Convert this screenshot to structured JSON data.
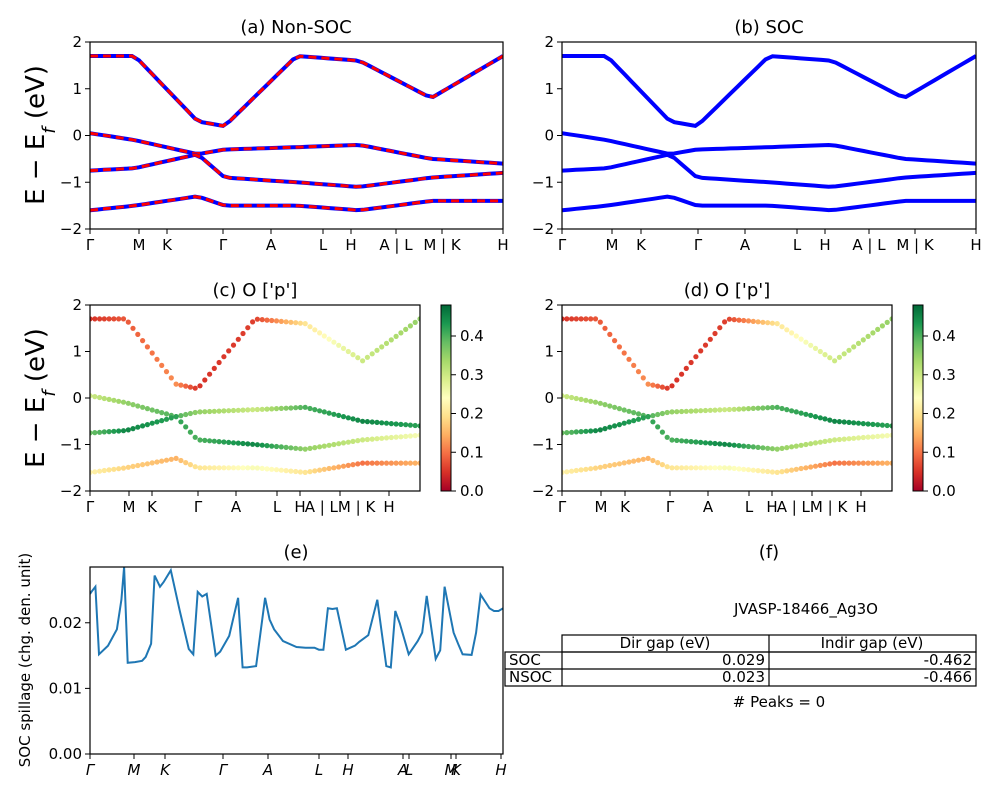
{
  "chart_data": [
    {
      "id": "a",
      "type": "line",
      "title": "(a) Non-SOC",
      "ylabel": "E − E_f (eV)",
      "ylim": [
        -2,
        2
      ],
      "yticks": [
        "2",
        "1",
        "0",
        "−1",
        "−2"
      ],
      "xticks": [
        "Γ",
        "M",
        "K",
        "Γ",
        "A",
        "L",
        "H",
        "A | L",
        "M | K",
        "H"
      ],
      "series": [
        {
          "color": "#0000ff",
          "style": "solid"
        },
        {
          "color": "#ff0000",
          "style": "dashed"
        }
      ],
      "bands": [
        {
          "x": [
            0,
            0.5,
            1.2,
            1.5,
            2.3,
            3.0,
            3.8,
            4.6
          ],
          "y": [
            1.7,
            1.7,
            0.3,
            0.2,
            1.7,
            1.6,
            0.8,
            1.7
          ]
        },
        {
          "x": [
            0,
            0.5,
            1.2,
            1.5,
            2.3,
            3.0,
            3.8,
            4.6
          ],
          "y": [
            0.05,
            -0.1,
            -0.4,
            -0.3,
            -0.25,
            -0.2,
            -0.5,
            -0.6
          ]
        },
        {
          "x": [
            0,
            0.5,
            1.2,
            1.5,
            2.3,
            3.0,
            3.8,
            4.6
          ],
          "y": [
            -0.75,
            -0.7,
            -0.4,
            -0.9,
            -1.0,
            -1.1,
            -0.9,
            -0.8
          ]
        },
        {
          "x": [
            0,
            0.5,
            1.2,
            1.5,
            2.3,
            3.0,
            3.8,
            4.6
          ],
          "y": [
            -1.6,
            -1.5,
            -1.3,
            -1.5,
            -1.5,
            -1.6,
            -1.4,
            -1.4
          ]
        }
      ]
    },
    {
      "id": "b",
      "type": "line",
      "title": "(b) SOC",
      "ylim": [
        -2,
        2
      ],
      "yticks": [
        "2",
        "1",
        "0",
        "−1",
        "−2"
      ],
      "xticks": [
        "Γ",
        "M",
        "K",
        "Γ",
        "A",
        "L",
        "H",
        "A | L",
        "M | K",
        "H"
      ],
      "series": [
        {
          "color": "#0000ff",
          "style": "solid"
        }
      ],
      "bands": [
        {
          "x": [
            0,
            0.5,
            1.2,
            1.5,
            2.3,
            3.0,
            3.8,
            4.6
          ],
          "y": [
            1.7,
            1.7,
            0.3,
            0.2,
            1.7,
            1.6,
            0.8,
            1.7
          ]
        },
        {
          "x": [
            0,
            0.5,
            1.2,
            1.5,
            2.3,
            3.0,
            3.8,
            4.6
          ],
          "y": [
            0.05,
            -0.1,
            -0.4,
            -0.3,
            -0.25,
            -0.2,
            -0.5,
            -0.6
          ]
        },
        {
          "x": [
            0,
            0.5,
            1.2,
            1.5,
            2.3,
            3.0,
            3.8,
            4.6
          ],
          "y": [
            -0.75,
            -0.7,
            -0.4,
            -0.9,
            -1.0,
            -1.1,
            -0.9,
            -0.8
          ]
        },
        {
          "x": [
            0,
            0.5,
            1.2,
            1.5,
            2.3,
            3.0,
            3.8,
            4.6
          ],
          "y": [
            -1.6,
            -1.5,
            -1.3,
            -1.5,
            -1.5,
            -1.6,
            -1.4,
            -1.4
          ]
        }
      ]
    },
    {
      "id": "c",
      "type": "scatter",
      "title": "(c)  O ['p']",
      "ylabel": "E − E_f (eV)",
      "ylim": [
        -2,
        2
      ],
      "yticks": [
        "2",
        "1",
        "0",
        "−1",
        "−2"
      ],
      "xticks": [
        "Γ",
        "M",
        "K",
        "Γ",
        "A",
        "L",
        "H",
        "A | LM | K",
        "H"
      ],
      "colorbar": {
        "min": 0.0,
        "max": 0.48,
        "ticks": [
          "0.4",
          "0.3",
          "0.2",
          "0.1",
          "0.0"
        ],
        "colormap": "RdYlGn"
      },
      "bands": [
        {
          "x": [
            0,
            0.5,
            1.2,
            1.5,
            2.3,
            3.0,
            3.8,
            4.6
          ],
          "y": [
            1.7,
            1.7,
            0.3,
            0.2,
            1.7,
            1.6,
            0.8,
            1.7
          ],
          "w": [
            0.05,
            0.08,
            0.12,
            0.05,
            0.06,
            0.2,
            0.3,
            0.35
          ]
        },
        {
          "x": [
            0,
            0.5,
            1.2,
            1.5,
            2.3,
            3.0,
            3.8,
            4.6
          ],
          "y": [
            0.05,
            -0.1,
            -0.4,
            -0.3,
            -0.25,
            -0.2,
            -0.5,
            -0.6
          ],
          "w": [
            0.3,
            0.35,
            0.4,
            0.35,
            0.3,
            0.4,
            0.45,
            0.42
          ]
        },
        {
          "x": [
            0,
            0.5,
            1.2,
            1.5,
            2.3,
            3.0,
            3.8,
            4.6
          ],
          "y": [
            -0.75,
            -0.7,
            -0.4,
            -0.9,
            -1.0,
            -1.1,
            -0.9,
            -0.8
          ],
          "w": [
            0.38,
            0.45,
            0.42,
            0.4,
            0.45,
            0.35,
            0.3,
            0.25
          ]
        },
        {
          "x": [
            0,
            0.5,
            1.2,
            1.5,
            2.3,
            3.0,
            3.8,
            4.6
          ],
          "y": [
            -1.6,
            -1.5,
            -1.3,
            -1.5,
            -1.5,
            -1.6,
            -1.4,
            -1.4
          ],
          "w": [
            0.22,
            0.18,
            0.15,
            0.2,
            0.25,
            0.2,
            0.1,
            0.15
          ]
        }
      ]
    },
    {
      "id": "d",
      "type": "scatter",
      "title": "(d) O ['p']",
      "ylim": [
        -2,
        2
      ],
      "yticks": [
        "2",
        "1",
        "0",
        "−1",
        "−2"
      ],
      "xticks": [
        "Γ",
        "M",
        "K",
        "Γ",
        "A",
        "L",
        "H",
        "A | LM | K",
        "H"
      ],
      "colorbar": {
        "min": 0.0,
        "max": 0.48,
        "ticks": [
          "0.4",
          "0.3",
          "0.2",
          "0.1",
          "0.0"
        ],
        "colormap": "RdYlGn"
      },
      "bands": [
        {
          "x": [
            0,
            0.5,
            1.2,
            1.5,
            2.3,
            3.0,
            3.8,
            4.6
          ],
          "y": [
            1.7,
            1.7,
            0.3,
            0.2,
            1.7,
            1.6,
            0.8,
            1.7
          ],
          "w": [
            0.05,
            0.08,
            0.12,
            0.05,
            0.06,
            0.2,
            0.3,
            0.35
          ]
        },
        {
          "x": [
            0,
            0.5,
            1.2,
            1.5,
            2.3,
            3.0,
            3.8,
            4.6
          ],
          "y": [
            0.05,
            -0.1,
            -0.4,
            -0.3,
            -0.25,
            -0.2,
            -0.5,
            -0.6
          ],
          "w": [
            0.3,
            0.35,
            0.4,
            0.35,
            0.3,
            0.4,
            0.45,
            0.42
          ]
        },
        {
          "x": [
            0,
            0.5,
            1.2,
            1.5,
            2.3,
            3.0,
            3.8,
            4.6
          ],
          "y": [
            -0.75,
            -0.7,
            -0.4,
            -0.9,
            -1.0,
            -1.1,
            -0.9,
            -0.8
          ],
          "w": [
            0.38,
            0.45,
            0.42,
            0.4,
            0.45,
            0.35,
            0.3,
            0.25
          ]
        },
        {
          "x": [
            0,
            0.5,
            1.2,
            1.5,
            2.3,
            3.0,
            3.8,
            4.6
          ],
          "y": [
            -1.6,
            -1.5,
            -1.3,
            -1.5,
            -1.5,
            -1.6,
            -1.4,
            -1.4
          ],
          "w": [
            0.22,
            0.18,
            0.15,
            0.2,
            0.25,
            0.2,
            0.1,
            0.15
          ]
        }
      ]
    },
    {
      "id": "e",
      "type": "line",
      "title": "(e)",
      "ylabel": "SOC spillage (chg. den. unit)",
      "ylim": [
        0.0,
        0.0285
      ],
      "yticks": [
        "0.02",
        "0.01",
        "0.00"
      ],
      "xticks": [
        "Γ",
        "M",
        "K",
        "Γ",
        "A",
        "L",
        "H",
        "A",
        "L",
        "M",
        "K",
        "H"
      ],
      "series": [
        {
          "color": "#1f77b4",
          "x": [
            0,
            0.02,
            0.06,
            0.1,
            0.2,
            0.3,
            0.35,
            0.38,
            0.42,
            0.5,
            0.58,
            0.62,
            0.68,
            0.72,
            0.78,
            0.82,
            0.9,
            1.0,
            1.1,
            1.15,
            1.2,
            1.25,
            1.3,
            1.4,
            1.45,
            1.55,
            1.65,
            1.7,
            1.75,
            1.85,
            1.95,
            2.0,
            2.05,
            2.15,
            2.3,
            2.4,
            2.5,
            2.55,
            2.6,
            2.65,
            2.7,
            2.75,
            2.85,
            2.95,
            3.0,
            3.1,
            3.2,
            3.3,
            3.35,
            3.4,
            3.45,
            3.55,
            3.65,
            3.7,
            3.75,
            3.85,
            3.9,
            3.95,
            4.05,
            4.1,
            4.15,
            4.25,
            4.3,
            4.35,
            4.45,
            4.5,
            4.55,
            4.6
          ],
          "y": [
            0.0244,
            0.0248,
            0.0255,
            0.0152,
            0.0165,
            0.019,
            0.0235,
            0.0285,
            0.0139,
            0.014,
            0.0142,
            0.0148,
            0.0168,
            0.0272,
            0.0255,
            0.0262,
            0.028,
            0.0218,
            0.016,
            0.0152,
            0.0247,
            0.024,
            0.0244,
            0.015,
            0.0156,
            0.018,
            0.0238,
            0.0132,
            0.0132,
            0.0134,
            0.0238,
            0.0205,
            0.019,
            0.0172,
            0.0163,
            0.0162,
            0.0162,
            0.0159,
            0.0159,
            0.0222,
            0.0221,
            0.0222,
            0.0159,
            0.0165,
            0.0171,
            0.0181,
            0.0235,
            0.0134,
            0.0132,
            0.0218,
            0.0199,
            0.0152,
            0.0172,
            0.0185,
            0.0241,
            0.0145,
            0.0158,
            0.0255,
            0.0185,
            0.0168,
            0.0152,
            0.0151,
            0.0185,
            0.0243,
            0.0222,
            0.0218,
            0.0218,
            0.0222
          ]
        }
      ]
    }
  ],
  "panel_f": {
    "title": "(f)",
    "material": "JVASP-18466_Ag3O",
    "table": {
      "headers": [
        "",
        "Dir gap (eV)",
        "Indir gap (eV)"
      ],
      "rows": [
        [
          "SOC",
          "0.029",
          "-0.462"
        ],
        [
          "NSOC",
          "0.023",
          "-0.466"
        ]
      ]
    },
    "peaks": "# Peaks = 0"
  }
}
